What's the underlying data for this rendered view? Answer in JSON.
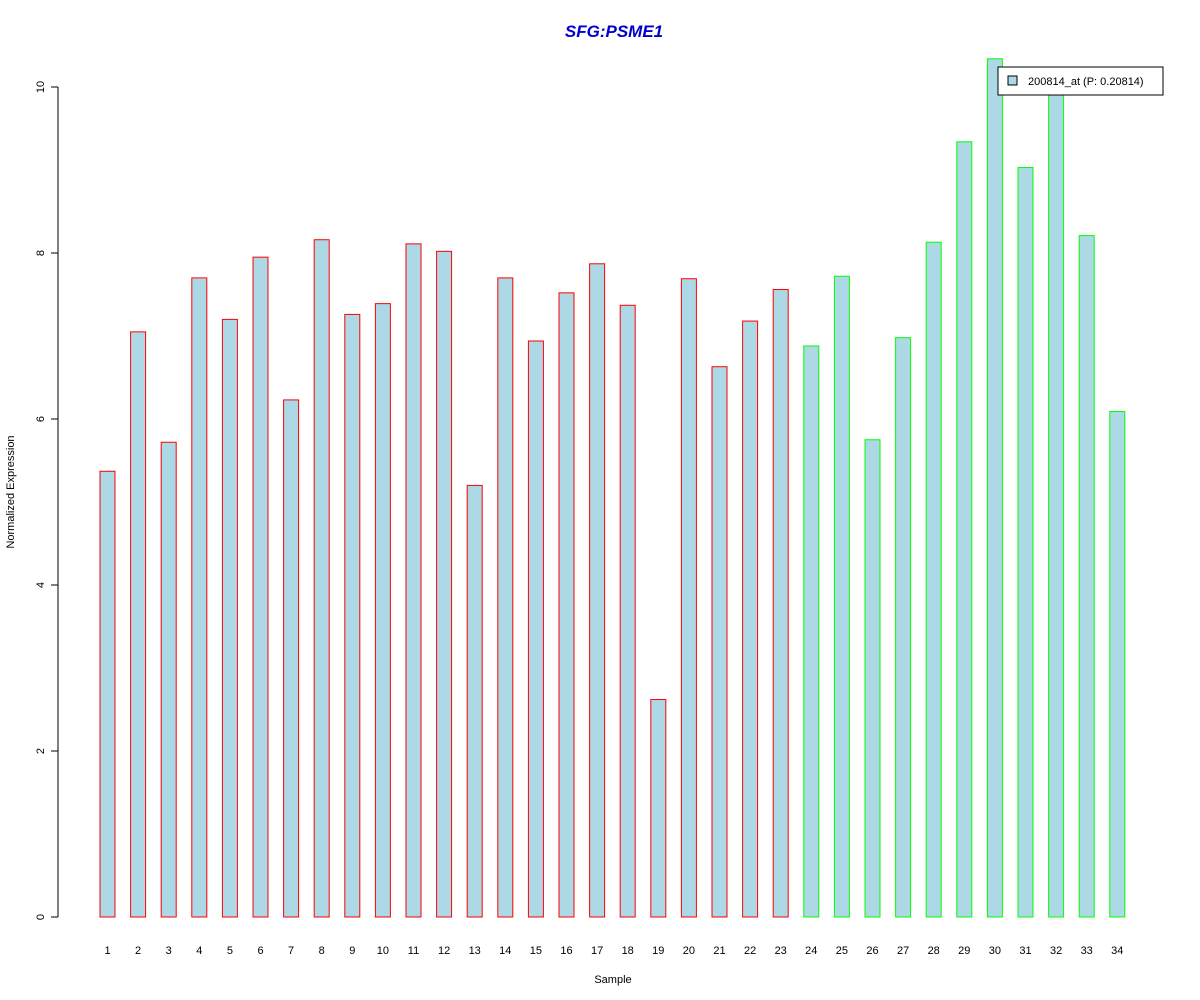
{
  "chart_data": {
    "type": "bar",
    "title": "SFG:PSME1",
    "xlabel": "Sample",
    "ylabel": "Normalized Expression",
    "ylim": [
      0,
      10
    ],
    "yticks": [
      "0",
      "2",
      "4",
      "6",
      "8",
      "10"
    ],
    "categories": [
      "1",
      "2",
      "3",
      "4",
      "5",
      "6",
      "7",
      "8",
      "9",
      "10",
      "11",
      "12",
      "13",
      "14",
      "15",
      "16",
      "17",
      "18",
      "19",
      "20",
      "21",
      "22",
      "23",
      "24",
      "25",
      "26",
      "27",
      "28",
      "29",
      "30",
      "31",
      "32",
      "33",
      "34"
    ],
    "series": [
      {
        "name": "200814_at (P: 0.20814)",
        "values": [
          5.37,
          7.05,
          5.72,
          7.7,
          7.2,
          7.95,
          6.23,
          8.16,
          7.26,
          7.39,
          8.11,
          8.02,
          5.2,
          7.7,
          6.94,
          7.52,
          7.87,
          7.37,
          2.62,
          7.69,
          6.63,
          7.18,
          7.56,
          6.88,
          7.72,
          5.75,
          6.98,
          8.13,
          9.34,
          10.34,
          9.03,
          9.93,
          8.21,
          6.09
        ]
      }
    ],
    "bar_fill": "#add8e6",
    "group_colors": [
      "#ff0000",
      "#00ff00"
    ],
    "group_sizes": [
      23,
      11
    ],
    "grid": false,
    "legend": {
      "position": "top-right",
      "entries": [
        "200814_at (P: 0.20814)"
      ]
    }
  },
  "colors": {
    "title": "#0000cd"
  }
}
